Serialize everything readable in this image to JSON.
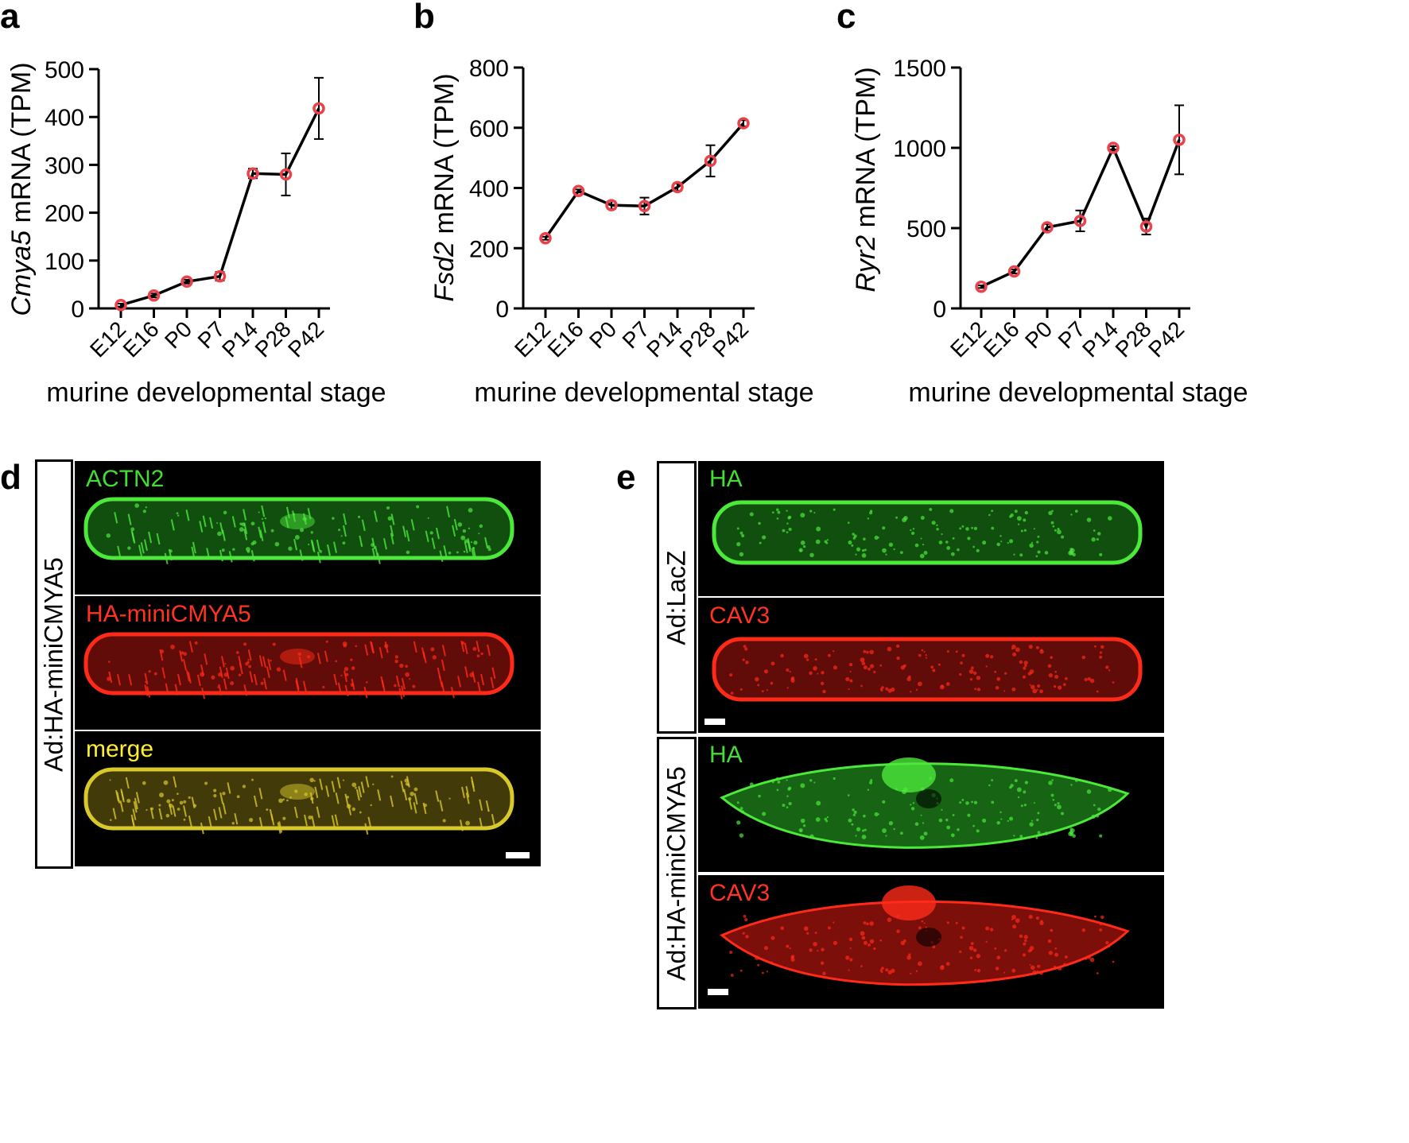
{
  "panel_letters": {
    "a": "a",
    "b": "b",
    "c": "c",
    "d": "d",
    "e": "e"
  },
  "chart_data": [
    {
      "panel": "a",
      "type": "line",
      "ylabel_italic": "Cmya5",
      "ylabel_rest": " mRNA (TPM)",
      "xlabel": "murine developmental stage",
      "categories": [
        "E12",
        "E16",
        "P0",
        "P7",
        "P14",
        "P28",
        "P42"
      ],
      "values": [
        7,
        27,
        56,
        67,
        282,
        280,
        418
      ],
      "errors": [
        3,
        4,
        4,
        9,
        10,
        44,
        64
      ],
      "ylim": [
        0,
        500
      ],
      "yticks": [
        0,
        100,
        200,
        300,
        400,
        500
      ],
      "marker_color": "#e8424b",
      "line_color": "#000000"
    },
    {
      "panel": "b",
      "type": "line",
      "ylabel_italic": "Fsd2",
      "ylabel_rest": " mRNA (TPM)",
      "xlabel": "murine developmental stage",
      "categories": [
        "E12",
        "E16",
        "P0",
        "P7",
        "P14",
        "P28",
        "P42"
      ],
      "values": [
        233,
        390,
        343,
        340,
        403,
        490,
        615
      ],
      "errors": [
        5,
        5,
        12,
        28,
        12,
        52,
        10
      ],
      "ylim": [
        0,
        800
      ],
      "yticks": [
        0,
        200,
        400,
        600,
        800
      ],
      "marker_color": "#e8424b",
      "line_color": "#000000"
    },
    {
      "panel": "c",
      "type": "line",
      "ylabel_italic": "Ryr2",
      "ylabel_rest": " mRNA (TPM)",
      "xlabel": "murine developmental stage",
      "categories": [
        "E12",
        "E16",
        "P0",
        "P7",
        "P14",
        "P28",
        "P42"
      ],
      "values": [
        135,
        230,
        505,
        545,
        1000,
        510,
        1050
      ],
      "errors": [
        8,
        12,
        20,
        65,
        10,
        50,
        215
      ],
      "ylim": [
        0,
        1500
      ],
      "yticks": [
        0,
        500,
        1000,
        1500
      ],
      "marker_color": "#e8424b",
      "line_color": "#000000"
    }
  ],
  "panel_d": {
    "side_label": "Ad:HA-miniCMYA5",
    "images": [
      {
        "label": "ACTN2",
        "label_color": "#44dd33",
        "channel": "green"
      },
      {
        "label": "HA-miniCMYA5",
        "label_color": "#ff3322",
        "channel": "red"
      },
      {
        "label": "merge",
        "label_color": "#ffee33",
        "channel": "merge"
      }
    ]
  },
  "panel_e": {
    "groups": [
      {
        "side_label": "Ad:LacZ",
        "images": [
          {
            "label": "HA",
            "label_color": "#44dd33",
            "channel": "green"
          },
          {
            "label": "CAV3",
            "label_color": "#ff3322",
            "channel": "red"
          }
        ]
      },
      {
        "side_label": "Ad:HA-miniCMYA5",
        "images": [
          {
            "label": "HA",
            "label_color": "#44dd33",
            "channel": "green"
          },
          {
            "label": "CAV3",
            "label_color": "#ff3322",
            "channel": "red"
          }
        ]
      }
    ]
  }
}
